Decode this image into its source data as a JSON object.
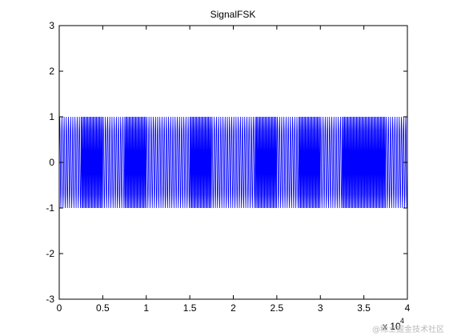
{
  "chart_data": {
    "type": "line",
    "title": "SignalFSK",
    "xlabel": "",
    "ylabel": "",
    "xlim": [
      0,
      4
    ],
    "ylim": [
      -3,
      3
    ],
    "x_tick_labels": [
      "0",
      "0.5",
      "1",
      "1.5",
      "2",
      "2.5",
      "3",
      "3.5",
      "4"
    ],
    "x_tick_values": [
      0,
      0.5,
      1,
      1.5,
      2,
      2.5,
      3,
      3.5,
      4
    ],
    "y_tick_labels": [
      "-3",
      "-2",
      "-1",
      "0",
      "1",
      "2",
      "3"
    ],
    "y_tick_values": [
      -3,
      -2,
      -1,
      0,
      1,
      2,
      3
    ],
    "x_exponent_label": "x 10",
    "x_exponent": "4",
    "grid": false,
    "series": [
      {
        "color": "#0000ff",
        "amplitude": 1,
        "description_values": {
          "min": -1,
          "max": 1
        },
        "segments": [
          {
            "x_start": 0.0,
            "x_end": 0.25,
            "cycles_per_unit": 40
          },
          {
            "x_start": 0.25,
            "x_end": 0.5,
            "cycles_per_unit": 80
          },
          {
            "x_start": 0.5,
            "x_end": 0.75,
            "cycles_per_unit": 40
          },
          {
            "x_start": 0.75,
            "x_end": 1.0,
            "cycles_per_unit": 80
          },
          {
            "x_start": 1.0,
            "x_end": 1.25,
            "cycles_per_unit": 40
          },
          {
            "x_start": 1.25,
            "x_end": 1.5,
            "cycles_per_unit": 40
          },
          {
            "x_start": 1.5,
            "x_end": 1.75,
            "cycles_per_unit": 80
          },
          {
            "x_start": 1.75,
            "x_end": 2.0,
            "cycles_per_unit": 40
          },
          {
            "x_start": 2.0,
            "x_end": 2.25,
            "cycles_per_unit": 40
          },
          {
            "x_start": 2.25,
            "x_end": 2.5,
            "cycles_per_unit": 80
          },
          {
            "x_start": 2.5,
            "x_end": 2.75,
            "cycles_per_unit": 40
          },
          {
            "x_start": 2.75,
            "x_end": 3.0,
            "cycles_per_unit": 80
          },
          {
            "x_start": 3.0,
            "x_end": 3.25,
            "cycles_per_unit": 40
          },
          {
            "x_start": 3.25,
            "x_end": 3.5,
            "cycles_per_unit": 80
          },
          {
            "x_start": 3.5,
            "x_end": 3.75,
            "cycles_per_unit": 80
          },
          {
            "x_start": 3.75,
            "x_end": 4.0,
            "cycles_per_unit": 40
          }
        ]
      }
    ]
  },
  "watermark_text": "@稀土掘金技术社区"
}
